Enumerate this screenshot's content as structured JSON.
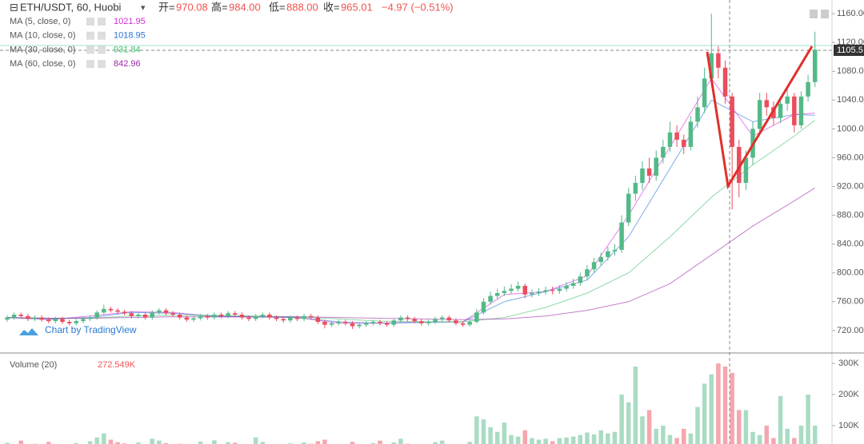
{
  "chart_data": {
    "type": "candlestick",
    "symbol": "ETH/USDT, 60, Huobi",
    "ohlc_legend": [
      {
        "label": "开=",
        "text": "970.08"
      },
      {
        "label": "高=",
        "text": "984.00"
      },
      {
        "label": "低=",
        "text": "888.00"
      },
      {
        "label": "收=",
        "text": "965.01"
      }
    ],
    "change": "−4.97 (−0.51%)",
    "watermark": "Chart by TradingView",
    "last_price": "1105.5",
    "up_color": "#53b987",
    "down_color": "#eb4d5c",
    "volume_up_color": "#a9dcc3",
    "volume_down_color": "#f5a6ae",
    "open": [
      735,
      738,
      742,
      740,
      736,
      738,
      735,
      733,
      736,
      732,
      730,
      733,
      736,
      738,
      745,
      750,
      748,
      746,
      744,
      740,
      742,
      738,
      745,
      748,
      744,
      742,
      738,
      735,
      737,
      740,
      738,
      742,
      740,
      744,
      742,
      738,
      736,
      740,
      742,
      738,
      736,
      734,
      738,
      736,
      740,
      738,
      732,
      728,
      730,
      732,
      730,
      726,
      728,
      730,
      732,
      730,
      728,
      734,
      738,
      736,
      733,
      730,
      732,
      736,
      738,
      734,
      730,
      728,
      732,
      745,
      760,
      768,
      772,
      775,
      778,
      782,
      770,
      772,
      774,
      776,
      775,
      778,
      782,
      786,
      795,
      805,
      815,
      822,
      830,
      832,
      870,
      910,
      925,
      945,
      935,
      960,
      975,
      995,
      985,
      975,
      1010,
      1030,
      1070,
      1105,
      1085,
      1045,
      975,
      925,
      960,
      1000,
      1040,
      1030,
      1015,
      1035,
      1045,
      1005,
      1045,
      1065
    ],
    "high": [
      741,
      745,
      745,
      743,
      741,
      741,
      738,
      739,
      739,
      735,
      736,
      739,
      741,
      748,
      756,
      753,
      751,
      749,
      747,
      745,
      745,
      748,
      751,
      751,
      747,
      745,
      741,
      740,
      743,
      743,
      745,
      745,
      747,
      747,
      745,
      741,
      743,
      745,
      745,
      741,
      739,
      741,
      741,
      743,
      743,
      741,
      735,
      733,
      735,
      735,
      733,
      731,
      733,
      735,
      735,
      733,
      737,
      741,
      741,
      739,
      736,
      735,
      739,
      741,
      741,
      737,
      733,
      735,
      750,
      765,
      774,
      778,
      781,
      784,
      788,
      785,
      777,
      779,
      781,
      781,
      783,
      787,
      792,
      800,
      811,
      821,
      828,
      836,
      840,
      880,
      918,
      935,
      955,
      960,
      970,
      985,
      1010,
      1005,
      992,
      1018,
      1045,
      1085,
      1160,
      1115,
      1095,
      1050,
      985,
      970,
      1010,
      1050,
      1050,
      1038,
      1045,
      1055,
      1050,
      1052,
      1075,
      1135
    ],
    "low": [
      732,
      735,
      737,
      733,
      733,
      732,
      730,
      730,
      729,
      727,
      727,
      730,
      733,
      735,
      742,
      745,
      743,
      741,
      737,
      737,
      735,
      735,
      742,
      741,
      739,
      735,
      732,
      732,
      734,
      735,
      735,
      737,
      737,
      739,
      735,
      733,
      733,
      737,
      735,
      733,
      731,
      731,
      733,
      733,
      735,
      729,
      723,
      725,
      727,
      727,
      722,
      723,
      725,
      727,
      727,
      725,
      725,
      731,
      733,
      730,
      727,
      727,
      729,
      733,
      731,
      727,
      725,
      725,
      730,
      742,
      756,
      764,
      768,
      771,
      774,
      765,
      766,
      768,
      770,
      770,
      771,
      774,
      778,
      782,
      790,
      800,
      810,
      817,
      824,
      828,
      865,
      900,
      915,
      925,
      928,
      952,
      968,
      975,
      965,
      970,
      1002,
      1022,
      1060,
      1070,
      1035,
      888,
      905,
      915,
      950,
      992,
      1018,
      1005,
      1008,
      1025,
      995,
      1000,
      1038,
      1058
    ],
    "close": [
      738,
      742,
      740,
      736,
      738,
      735,
      733,
      736,
      732,
      730,
      733,
      736,
      738,
      745,
      750,
      748,
      746,
      744,
      740,
      742,
      738,
      745,
      748,
      744,
      742,
      738,
      735,
      737,
      740,
      738,
      742,
      740,
      744,
      742,
      738,
      736,
      740,
      742,
      738,
      736,
      734,
      738,
      736,
      740,
      738,
      732,
      728,
      730,
      732,
      730,
      726,
      728,
      730,
      732,
      730,
      728,
      734,
      738,
      736,
      733,
      730,
      732,
      736,
      738,
      734,
      730,
      728,
      732,
      745,
      760,
      768,
      772,
      775,
      778,
      782,
      770,
      772,
      774,
      776,
      775,
      778,
      782,
      786,
      795,
      805,
      815,
      822,
      830,
      832,
      870,
      910,
      925,
      945,
      935,
      960,
      975,
      995,
      985,
      975,
      1010,
      1030,
      1070,
      1105,
      1085,
      1045,
      975,
      925,
      960,
      1000,
      1040,
      1030,
      1015,
      1035,
      1045,
      1005,
      1045,
      1065,
      1110
    ],
    "volume": [
      45000,
      38000,
      52000,
      30000,
      42000,
      35000,
      48000,
      33000,
      40000,
      36000,
      44000,
      39000,
      50000,
      62000,
      75000,
      55000,
      47000,
      43000,
      38000,
      46000,
      41000,
      58000,
      52000,
      44000,
      37000,
      42000,
      35000,
      40000,
      49000,
      38000,
      53000,
      41000,
      47000,
      45000,
      36000,
      39000,
      62000,
      48000,
      40000,
      37000,
      35000,
      43000,
      38000,
      46000,
      42000,
      50000,
      55000,
      39000,
      41000,
      36000,
      48000,
      37000,
      40000,
      44000,
      52000,
      38000,
      46000,
      58000,
      42000,
      39000,
      35000,
      41000,
      47000,
      52000,
      40000,
      38000,
      36000,
      48000,
      130000,
      120000,
      95000,
      80000,
      110000,
      70000,
      65000,
      85000,
      60000,
      55000,
      58000,
      50000,
      60000,
      62000,
      65000,
      70000,
      78000,
      72000,
      85000,
      75000,
      80000,
      200000,
      175000,
      290000,
      130000,
      150000,
      90000,
      100000,
      70000,
      60000,
      90000,
      75000,
      160000,
      235000,
      265000,
      300000,
      290000,
      270000,
      150000,
      150000,
      80000,
      70000,
      100000,
      60000,
      195000,
      90000,
      60000,
      100000,
      200000,
      100000
    ],
    "ylim": [
      691,
      1179
    ],
    "yticks": [
      {
        "value": 720,
        "label": "720.00"
      },
      {
        "value": 760,
        "label": "760.00"
      },
      {
        "value": 800,
        "label": "800.00"
      },
      {
        "value": 840,
        "label": "840.00"
      },
      {
        "value": 880,
        "label": "880.00"
      },
      {
        "value": 920,
        "label": "920.00"
      },
      {
        "value": 960,
        "label": "960.00"
      },
      {
        "value": 1000,
        "label": "1000.00"
      },
      {
        "value": 1040,
        "label": "1040.00"
      },
      {
        "value": 1080,
        "label": "1080.00"
      },
      {
        "value": 1120,
        "label": "1120.00"
      },
      {
        "value": 1160,
        "label": "1160.00"
      }
    ],
    "volume_name": "Volume (20)",
    "volume_legend": "272.549K",
    "volume_ylim": [
      41000,
      326000
    ],
    "volume_yticks": [
      {
        "value": 100000,
        "label": "100K"
      },
      {
        "value": 200000,
        "label": "200K"
      },
      {
        "value": 300000,
        "label": "300K"
      }
    ],
    "ma": [
      {
        "name": "MA (5, close, 0)",
        "legend": "1021.95",
        "color": "#d52dd8",
        "x": [
          0,
          6,
          12,
          18,
          24,
          30,
          36,
          42,
          48,
          54,
          60,
          66,
          72,
          78,
          84,
          90,
          96,
          102,
          108,
          114,
          117
        ],
        "values": [
          738,
          735,
          740,
          746,
          745,
          739,
          739,
          738,
          730,
          730,
          732,
          732,
          770,
          774,
          796,
          880,
          975,
          1070,
          990,
          1020,
          1022
        ]
      },
      {
        "name": "MA (10, close, 0)",
        "legend": "1018.95",
        "color": "#2a74d4",
        "x": [
          0,
          6,
          12,
          18,
          24,
          30,
          36,
          42,
          48,
          54,
          60,
          66,
          72,
          78,
          84,
          90,
          96,
          102,
          108,
          114,
          117
        ],
        "values": [
          738,
          736,
          738,
          745,
          744,
          740,
          739,
          738,
          732,
          730,
          731,
          732,
          760,
          774,
          790,
          850,
          945,
          1040,
          1010,
          1020,
          1019
        ]
      },
      {
        "name": "MA (30, close, 0)",
        "legend": "931.84",
        "color": "#3fbf6a",
        "x": [
          0,
          6,
          12,
          18,
          24,
          30,
          36,
          42,
          48,
          54,
          60,
          66,
          72,
          78,
          84,
          90,
          96,
          102,
          108,
          114,
          117
        ],
        "values": [
          738,
          737,
          737,
          740,
          741,
          741,
          740,
          739,
          736,
          733,
          732,
          732,
          738,
          752,
          772,
          800,
          850,
          905,
          950,
          990,
          1012
        ]
      },
      {
        "name": "MA (60, close, 0)",
        "legend": "842.96",
        "color": "#9c2aa8",
        "x": [
          0,
          6,
          12,
          18,
          24,
          30,
          36,
          42,
          48,
          54,
          60,
          66,
          72,
          78,
          84,
          90,
          96,
          102,
          108,
          114,
          117
        ],
        "values": [
          738,
          737,
          737,
          738,
          739,
          739,
          739,
          739,
          738,
          737,
          736,
          735,
          736,
          740,
          748,
          760,
          785,
          825,
          865,
          900,
          918
        ]
      }
    ]
  }
}
